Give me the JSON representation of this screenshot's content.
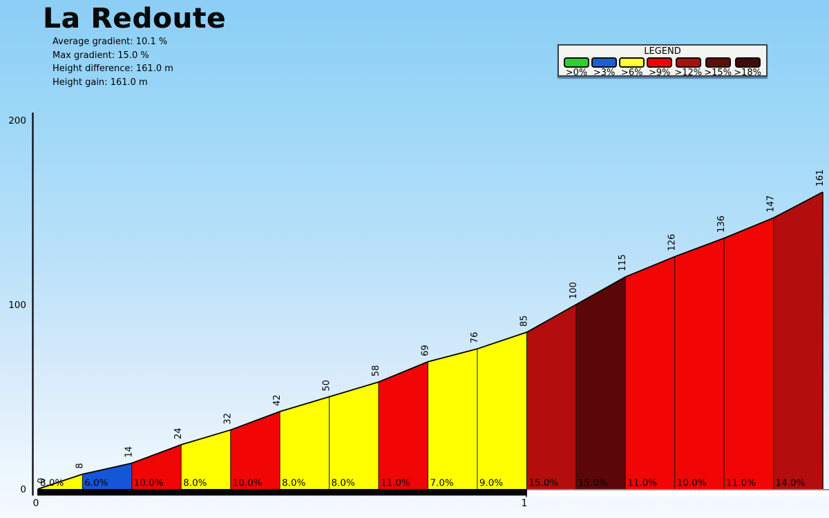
{
  "header": {
    "title": "La Redoute",
    "stats": [
      "Average gradient: 10.1 %",
      "Max gradient: 15.0 %",
      "Height difference: 161.0 m",
      "Height gain: 161.0 m"
    ]
  },
  "legend": {
    "title": "LEGEND",
    "items": [
      {
        "label": ">0%",
        "color": "#2ad42a"
      },
      {
        "label": ">3%",
        "color": "#1b5fd6"
      },
      {
        "label": ">6%",
        "color": "#ffff33"
      },
      {
        "label": ">9%",
        "color": "#ee0202"
      },
      {
        "label": ">12%",
        "color": "#a81111"
      },
      {
        "label": ">15%",
        "color": "#5f0e0e"
      },
      {
        "label": ">18%",
        "color": "#3f0b0b"
      }
    ]
  },
  "chart_data": {
    "type": "area",
    "title": "La Redoute",
    "x_axis": {
      "unit": "km",
      "ticks": [
        0,
        1
      ],
      "min_km": 0,
      "max_km": 1.59
    },
    "y_axis": {
      "unit": "m",
      "ticks": [
        0,
        100,
        200
      ],
      "min": 0,
      "max": 200
    },
    "grid": false,
    "legend_position": "top-right",
    "boundary_elevations_m": [
      0,
      8,
      14,
      24,
      32,
      42,
      50,
      58,
      69,
      76,
      85,
      100,
      115,
      126,
      136,
      147,
      161
    ],
    "segments": [
      {
        "km_start": 0.0,
        "km_end": 0.09,
        "elev_start": 0,
        "elev_end": 8,
        "gradient_label": "8.0%",
        "category": ">6%",
        "color": "#ffff00"
      },
      {
        "km_start": 0.09,
        "km_end": 0.19,
        "elev_start": 8,
        "elev_end": 14,
        "gradient_label": "6.0%",
        "category": ">3%",
        "color": "#1556d8"
      },
      {
        "km_start": 0.19,
        "km_end": 0.29,
        "elev_start": 14,
        "elev_end": 24,
        "gradient_label": "10.0%",
        "category": ">9%",
        "color": "#f10505"
      },
      {
        "km_start": 0.29,
        "km_end": 0.39,
        "elev_start": 24,
        "elev_end": 32,
        "gradient_label": "8.0%",
        "category": ">6%",
        "color": "#ffff00"
      },
      {
        "km_start": 0.39,
        "km_end": 0.49,
        "elev_start": 32,
        "elev_end": 42,
        "gradient_label": "10.0%",
        "category": ">9%",
        "color": "#f10505"
      },
      {
        "km_start": 0.49,
        "km_end": 0.59,
        "elev_start": 42,
        "elev_end": 50,
        "gradient_label": "8.0%",
        "category": ">6%",
        "color": "#ffff00"
      },
      {
        "km_start": 0.59,
        "km_end": 0.69,
        "elev_start": 50,
        "elev_end": 58,
        "gradient_label": "8.0%",
        "category": ">6%",
        "color": "#ffff00"
      },
      {
        "km_start": 0.69,
        "km_end": 0.79,
        "elev_start": 58,
        "elev_end": 69,
        "gradient_label": "11.0%",
        "category": ">9%",
        "color": "#f10505"
      },
      {
        "km_start": 0.79,
        "km_end": 0.89,
        "elev_start": 69,
        "elev_end": 76,
        "gradient_label": "7.0%",
        "category": ">6%",
        "color": "#ffff00"
      },
      {
        "km_start": 0.89,
        "km_end": 0.99,
        "elev_start": 76,
        "elev_end": 85,
        "gradient_label": "9.0%",
        "category": ">6%",
        "color": "#ffff00"
      },
      {
        "km_start": 0.99,
        "km_end": 1.09,
        "elev_start": 85,
        "elev_end": 100,
        "gradient_label": "15.0%",
        "category": ">12%",
        "color": "#b30d0d"
      },
      {
        "km_start": 1.09,
        "km_end": 1.19,
        "elev_start": 100,
        "elev_end": 115,
        "gradient_label": "15.0%",
        "category": ">15%",
        "color": "#5c0707"
      },
      {
        "km_start": 1.19,
        "km_end": 1.29,
        "elev_start": 115,
        "elev_end": 126,
        "gradient_label": "11.0%",
        "category": ">9%",
        "color": "#f10505"
      },
      {
        "km_start": 1.29,
        "km_end": 1.39,
        "elev_start": 126,
        "elev_end": 136,
        "gradient_label": "10.0%",
        "category": ">9%",
        "color": "#f10505"
      },
      {
        "km_start": 1.39,
        "km_end": 1.49,
        "elev_start": 136,
        "elev_end": 147,
        "gradient_label": "11.0%",
        "category": ">9%",
        "color": "#f10505"
      },
      {
        "km_start": 1.49,
        "km_end": 1.59,
        "elev_start": 147,
        "elev_end": 161,
        "gradient_label": "14.0%",
        "category": ">12%",
        "color": "#b30d0d"
      }
    ]
  }
}
